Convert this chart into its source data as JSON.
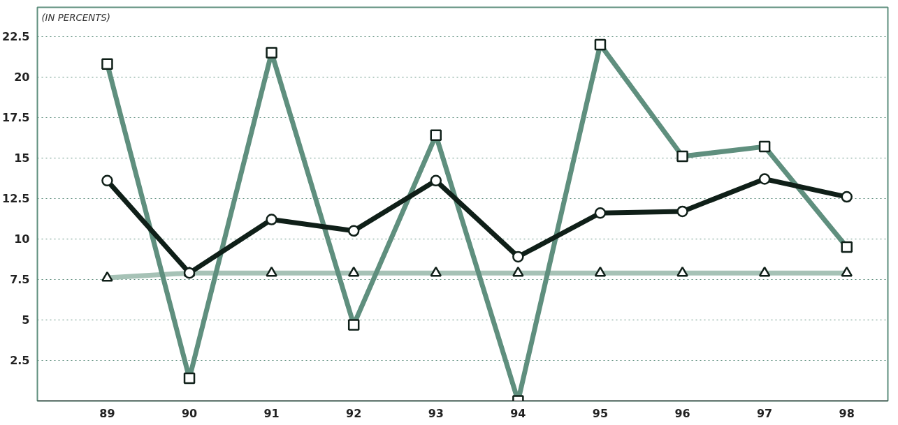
{
  "chart_data": {
    "type": "line",
    "annotations": [
      "(IN PERCENTS)"
    ],
    "categories": [
      "89",
      "90",
      "91",
      "92",
      "93",
      "94",
      "95",
      "96",
      "97",
      "98"
    ],
    "series": [
      {
        "color": "#a6c2b6",
        "marker": "triangle",
        "values": [
          7.6,
          7.9,
          7.9,
          7.9,
          7.9,
          7.9,
          7.9,
          7.9,
          7.9,
          7.9
        ]
      },
      {
        "color": "#5f8f7e",
        "marker": "square",
        "values": [
          20.8,
          1.4,
          21.5,
          4.7,
          16.4,
          0,
          22.0,
          15.1,
          15.7,
          9.5
        ]
      },
      {
        "color": "#0f1f18",
        "marker": "circle",
        "values": [
          13.6,
          7.9,
          11.2,
          10.5,
          13.6,
          8.9,
          11.6,
          11.7,
          13.7,
          12.6
        ]
      }
    ],
    "ylim": [
      0,
      24.3
    ],
    "yticks": [
      {
        "value": 0,
        "label": null
      },
      2.5,
      5,
      7.5,
      10,
      12.5,
      15,
      17.5,
      20,
      22.5
    ],
    "grid": "y",
    "line_style": "solid"
  }
}
